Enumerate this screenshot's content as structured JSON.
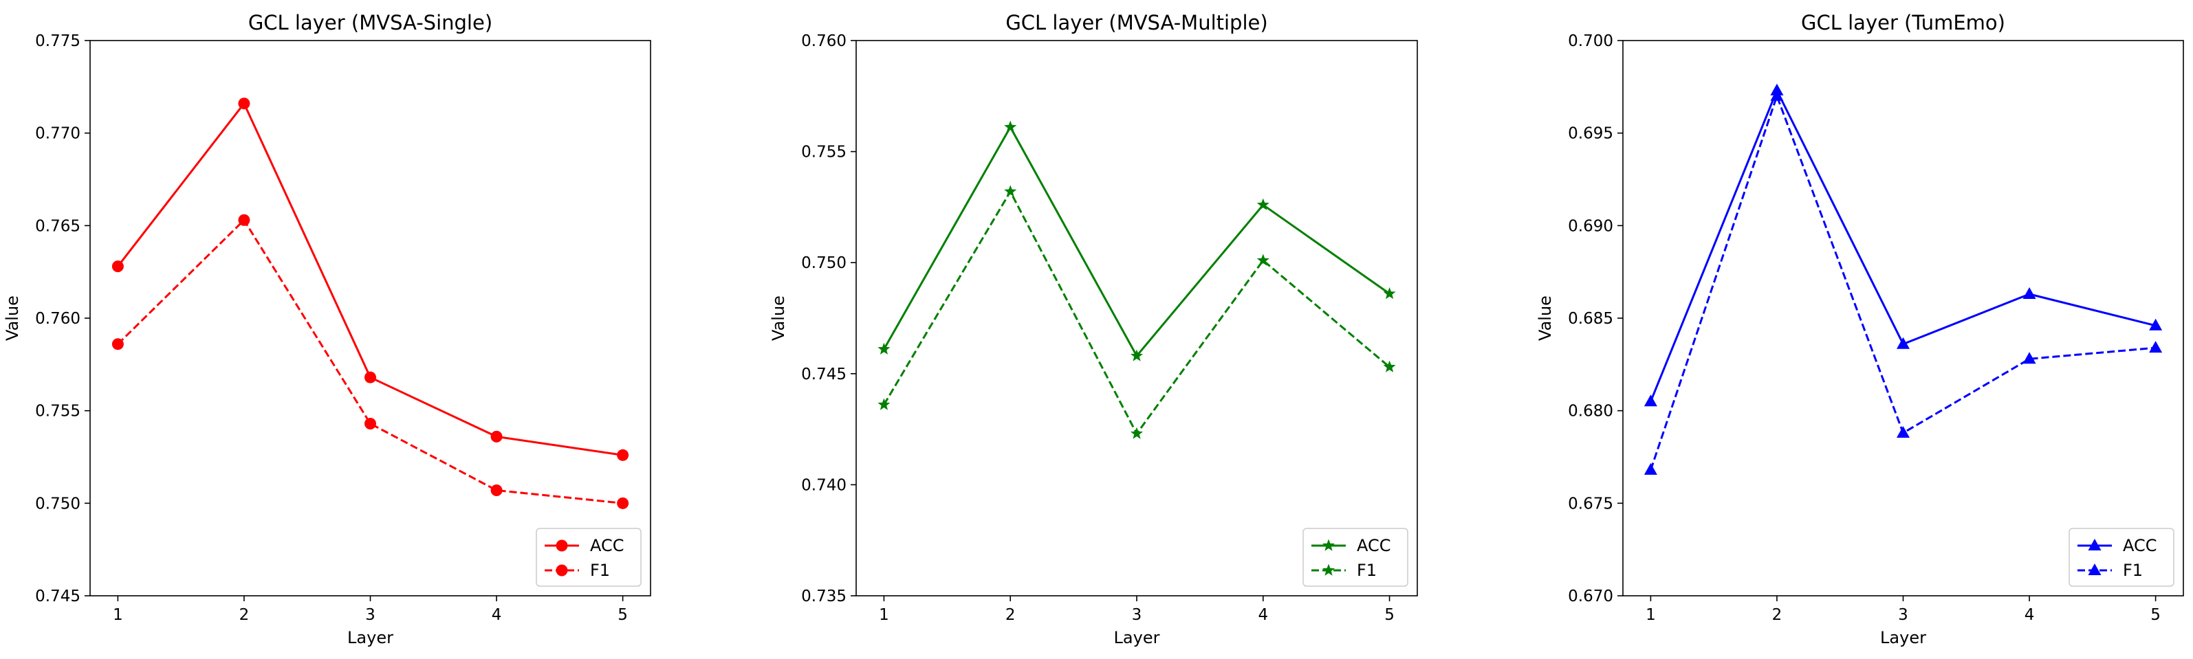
{
  "chart_data": [
    {
      "type": "line",
      "title": "GCL layer (MVSA-Single)",
      "xlabel": "Layer",
      "ylabel": "Value",
      "x": [
        1,
        2,
        3,
        4,
        5
      ],
      "xticks": [
        "1",
        "2",
        "3",
        "4",
        "5"
      ],
      "ylim": [
        0.745,
        0.775
      ],
      "yticks": [
        "0.745",
        "0.750",
        "0.755",
        "0.760",
        "0.765",
        "0.770",
        "0.775"
      ],
      "color": "#ff0000",
      "marker": "circle",
      "legend_position": "lower right",
      "grid": false,
      "series": [
        {
          "name": "ACC",
          "linestyle": "solid",
          "values": [
            0.7628,
            0.7716,
            0.7568,
            0.7536,
            0.7526
          ]
        },
        {
          "name": "F1",
          "linestyle": "dashed",
          "values": [
            0.7586,
            0.7653,
            0.7543,
            0.7507,
            0.75
          ]
        }
      ]
    },
    {
      "type": "line",
      "title": "GCL layer (MVSA-Multiple)",
      "xlabel": "Layer",
      "ylabel": "Value",
      "x": [
        1,
        2,
        3,
        4,
        5
      ],
      "xticks": [
        "1",
        "2",
        "3",
        "4",
        "5"
      ],
      "ylim": [
        0.735,
        0.76
      ],
      "yticks": [
        "0.735",
        "0.740",
        "0.745",
        "0.750",
        "0.755",
        "0.760"
      ],
      "color": "#008000",
      "marker": "star",
      "legend_position": "lower right",
      "grid": false,
      "series": [
        {
          "name": "ACC",
          "linestyle": "solid",
          "values": [
            0.7461,
            0.7561,
            0.7458,
            0.7526,
            0.7486
          ]
        },
        {
          "name": "F1",
          "linestyle": "dashed",
          "values": [
            0.7436,
            0.7532,
            0.7423,
            0.7501,
            0.7453
          ]
        }
      ]
    },
    {
      "type": "line",
      "title": "GCL layer (TumEmo)",
      "xlabel": "Layer",
      "ylabel": "Value",
      "x": [
        1,
        2,
        3,
        4,
        5
      ],
      "xticks": [
        "1",
        "2",
        "3",
        "4",
        "5"
      ],
      "ylim": [
        0.67,
        0.7
      ],
      "yticks": [
        "0.670",
        "0.675",
        "0.680",
        "0.685",
        "0.690",
        "0.695",
        "0.700"
      ],
      "color": "#0000ff",
      "marker": "triangle",
      "legend_position": "lower right",
      "grid": false,
      "series": [
        {
          "name": "ACC",
          "linestyle": "solid",
          "values": [
            0.6805,
            0.6973,
            0.6836,
            0.6863,
            0.6846
          ]
        },
        {
          "name": "F1",
          "linestyle": "dashed",
          "values": [
            0.6768,
            0.697,
            0.6788,
            0.6828,
            0.6834
          ]
        }
      ]
    }
  ]
}
